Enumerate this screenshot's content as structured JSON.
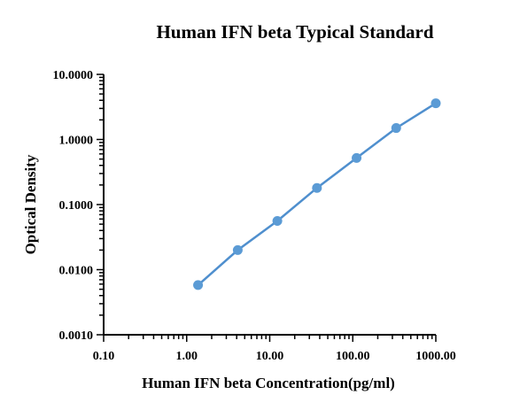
{
  "chart_data": {
    "type": "scatter",
    "title": "Human IFN beta Typical Standard",
    "xlabel": "Human IFN beta Concentration(pg/ml)",
    "ylabel": "Optical Density",
    "x_scale": "log",
    "y_scale": "log",
    "xlim": [
      0.1,
      1000
    ],
    "ylim": [
      0.001,
      10
    ],
    "x_ticks": [
      0.1,
      1,
      10,
      100,
      1000
    ],
    "x_tick_labels": [
      "0.10",
      "1.00",
      "10.00",
      "100.00",
      "1000.00"
    ],
    "y_ticks": [
      0.001,
      0.01,
      0.1,
      1,
      10
    ],
    "y_tick_labels": [
      "0.0010",
      "0.0100",
      "0.1000",
      "1.0000",
      "10.0000"
    ],
    "grid": false,
    "legend": "none",
    "colors": {
      "series": "#4f8fce",
      "marker": "#5b9bd5",
      "axis": "#000000"
    },
    "series": [
      {
        "x": [
          1.37,
          4.12,
          12.35,
          37.04,
          111.11,
          333.33,
          1000
        ],
        "y": [
          0.0058,
          0.02,
          0.056,
          0.18,
          0.52,
          1.5,
          3.6
        ]
      }
    ]
  }
}
